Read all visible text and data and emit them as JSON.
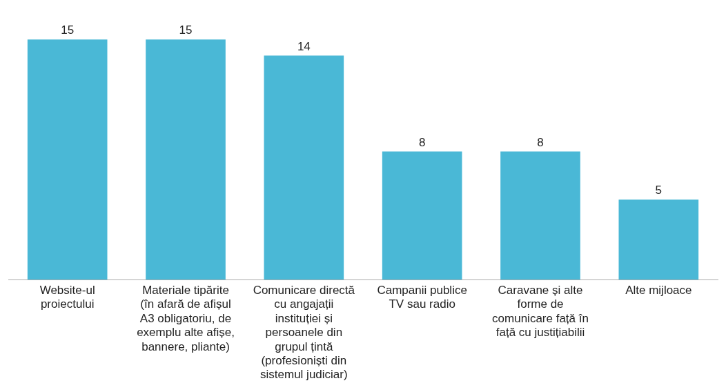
{
  "chart_data": {
    "type": "bar",
    "categories": [
      "Website-ul proiectului",
      "Materiale tipărite (în afară de afișul A3 obligatoriu, de exemplu alte afișe, bannere, pliante)",
      "Comunicare directă cu angajații instituției și persoanele din grupul țintă (profesioniști din sistemul judiciar)",
      "Campanii publice TV sau radio",
      "Caravane și alte forme de comunicare față în față cu justițiabilii",
      "Alte mijloace"
    ],
    "values": [
      15,
      15,
      14,
      8,
      8,
      5
    ],
    "color": "#4ab8d6",
    "data_labels": true,
    "grid": false,
    "legend": false
  }
}
